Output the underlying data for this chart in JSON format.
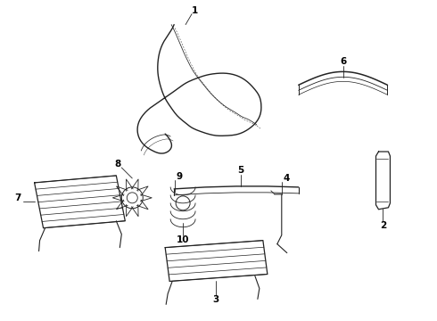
{
  "bg_color": "#ffffff",
  "line_color": "#222222",
  "label_color": "#000000",
  "figsize": [
    4.9,
    3.6
  ],
  "dpi": 100,
  "lw_main": 0.9,
  "lw_inner": 0.55,
  "label_fontsize": 7.5
}
